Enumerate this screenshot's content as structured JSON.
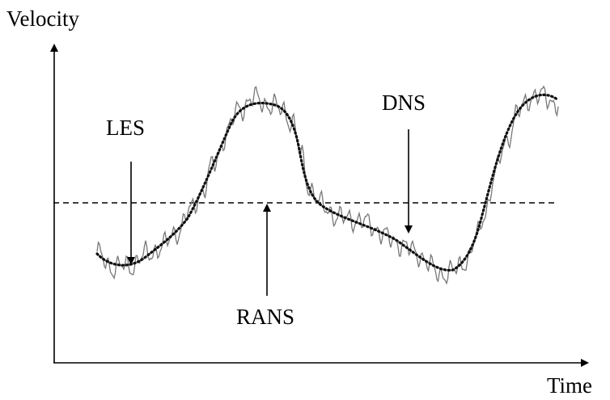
{
  "axes": {
    "y_label": "Velocity",
    "x_label": "Time"
  },
  "annotations": {
    "les": "LES",
    "dns": "DNS",
    "rans": "RANS"
  },
  "colors": {
    "axis": "#000000",
    "dns_curve": "#777777",
    "les_curve": "#111111",
    "rans_line": "#000000",
    "text": "#000000"
  }
}
